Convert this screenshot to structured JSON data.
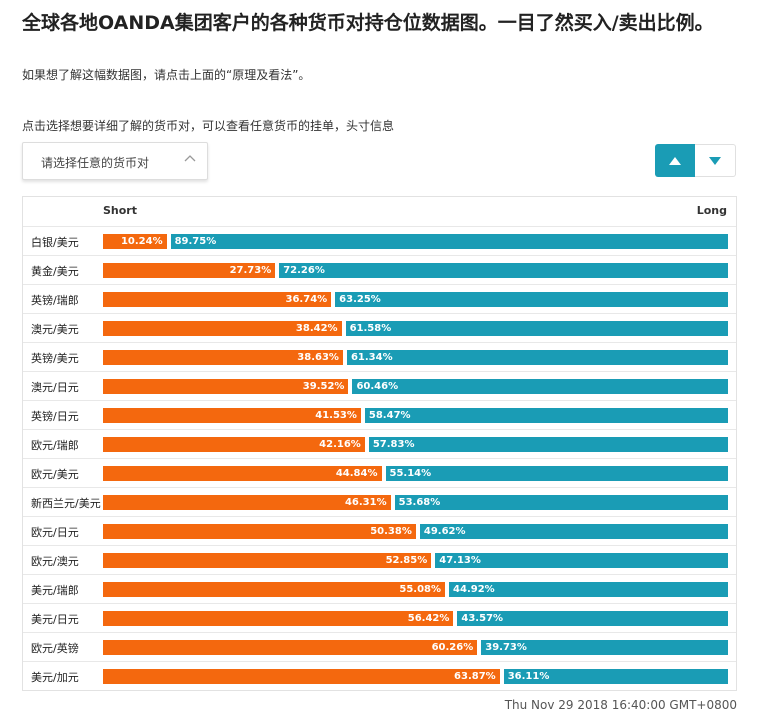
{
  "header": {
    "title": "全球各地OANDA集团客户的各种货币对持仓位数据图。一目了然买入/卖出比例。",
    "hint_principle": "如果想了解这幅数据图，请点击上面的“原理及看法”。",
    "hint_select": "点击选择想要详细了解的货币对，可以查看任意货币的挂单，头寸信息"
  },
  "controls": {
    "select_placeholder": "请选择任意的货币对",
    "caret_icon": "chevron-up-icon",
    "sort_asc_icon": "triangle-up-icon",
    "sort_desc_icon": "triangle-down-icon",
    "accent": "#1a9cb5"
  },
  "chart_data": {
    "type": "bar",
    "orientation": "horizontal",
    "stacked": true,
    "short_label": "Short",
    "long_label": "Long",
    "colors": {
      "short": "#f4680e",
      "long": "#1a9cb5"
    },
    "categories": [
      "白银/美元",
      "黄金/美元",
      "英镑/瑞郎",
      "澳元/美元",
      "英镑/美元",
      "澳元/日元",
      "英镑/日元",
      "欧元/瑞郎",
      "欧元/美元",
      "新西兰元/美元",
      "欧元/日元",
      "欧元/澳元",
      "美元/瑞郎",
      "美元/日元",
      "欧元/英镑",
      "美元/加元"
    ],
    "series": [
      {
        "name": "Short",
        "values": [
          10.24,
          27.73,
          36.74,
          38.42,
          38.63,
          39.52,
          41.53,
          42.16,
          44.84,
          46.31,
          50.38,
          52.85,
          55.08,
          56.42,
          60.26,
          63.87
        ],
        "labels": [
          "10.24%",
          "27.73%",
          "36.74%",
          "38.42%",
          "38.63%",
          "39.52%",
          "41.53%",
          "42.16%",
          "44.84%",
          "46.31%",
          "50.38%",
          "52.85%",
          "55.08%",
          "56.42%",
          "60.26%",
          "63.87%"
        ]
      },
      {
        "name": "Long",
        "values": [
          89.75,
          72.26,
          63.25,
          61.58,
          61.34,
          60.46,
          58.47,
          57.83,
          55.14,
          53.68,
          49.62,
          47.13,
          44.92,
          43.57,
          39.73,
          36.11
        ],
        "labels": [
          "89.75%",
          "72.26%",
          "63.25%",
          "61.58%",
          "61.34%",
          "60.46%",
          "58.47%",
          "57.83%",
          "55.14%",
          "53.68%",
          "49.62%",
          "47.13%",
          "44.92%",
          "43.57%",
          "39.73%",
          "36.11%"
        ]
      }
    ],
    "xlim": [
      0,
      100
    ]
  },
  "footer": {
    "timestamp": "Thu Nov 29 2018 16:40:00 GMT+0800"
  }
}
